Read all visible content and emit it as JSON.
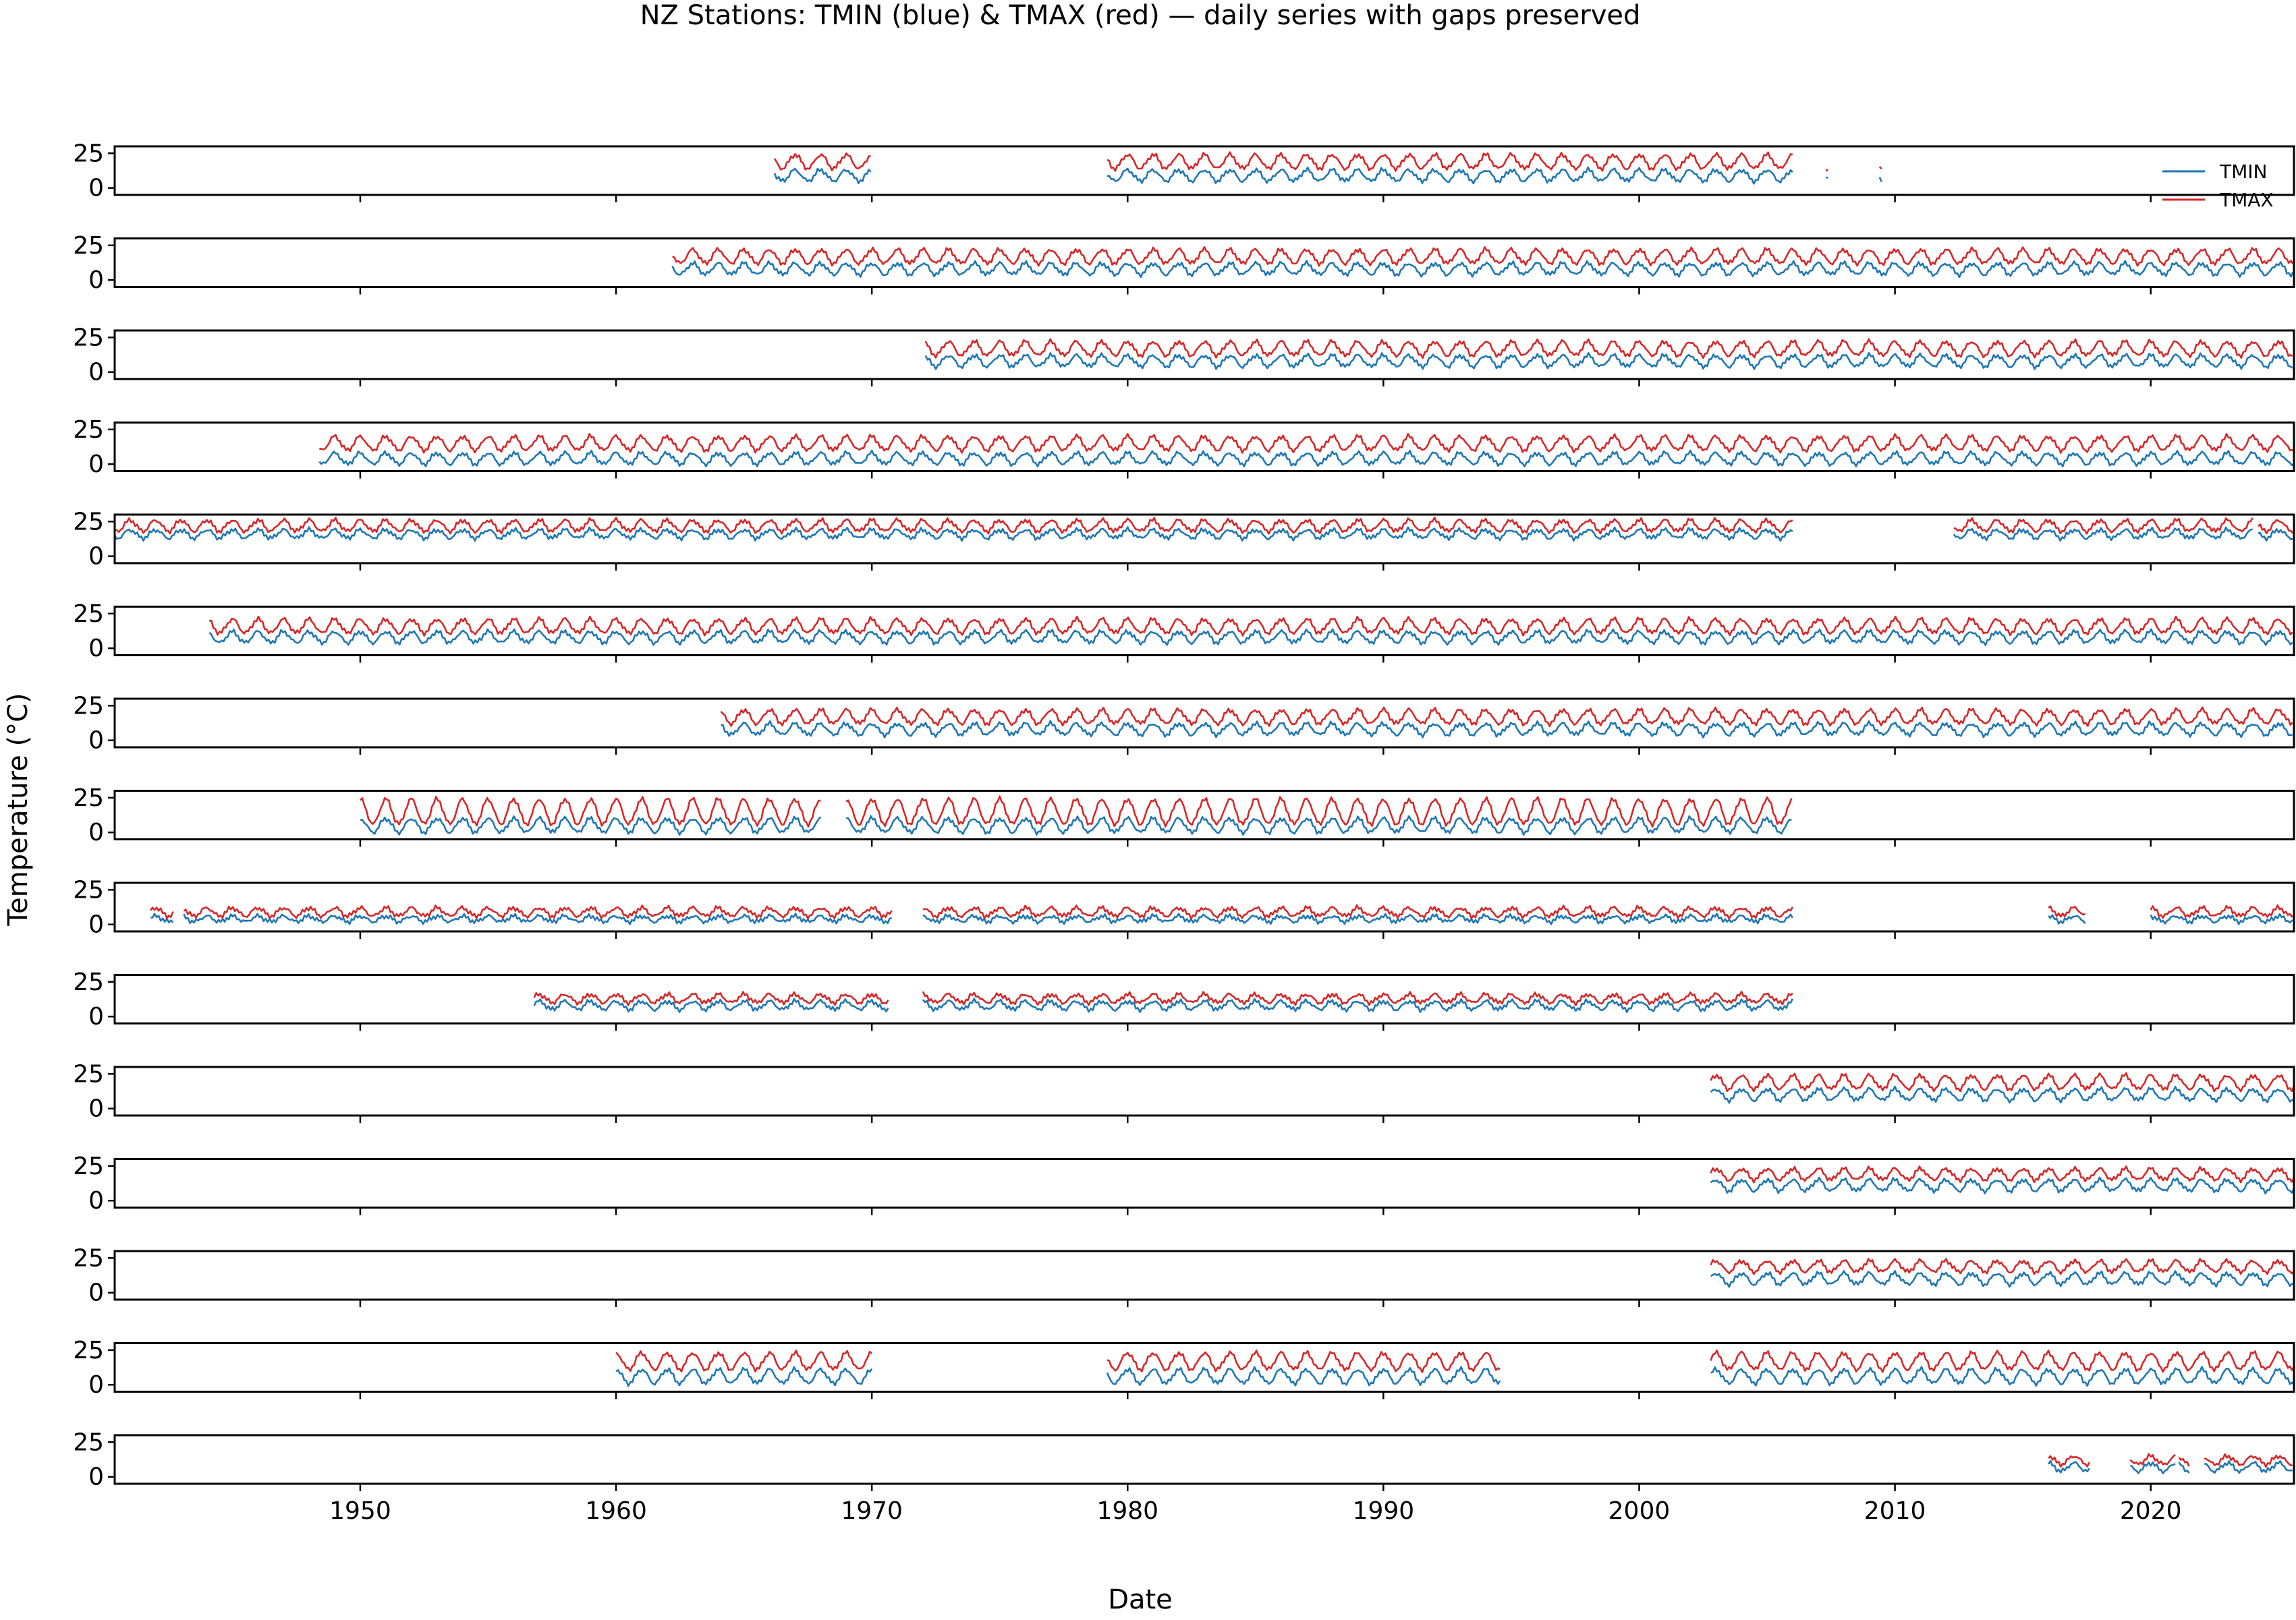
{
  "chart_data": {
    "type": "line",
    "title": "NZ Stations: TMIN (blue) & TMAX (red) — daily series with gaps preserved",
    "xlabel": "Date",
    "ylabel": "Temperature (°C)",
    "xlim": [
      1940.4,
      2025.6
    ],
    "ylim": [
      -5,
      30
    ],
    "x_ticks": [
      "1950",
      "1960",
      "1970",
      "1980",
      "1990",
      "2000",
      "2010",
      "2020"
    ],
    "y_ticks": [
      "0",
      "25"
    ],
    "legend": {
      "placement": "top-right",
      "entries": [
        "TMIN",
        "TMAX"
      ]
    },
    "colors": {
      "TMIN": "#1f77b4",
      "TMAX": "#d62728"
    },
    "grid": false,
    "panels": [
      {
        "segments": [
          {
            "start": 1966.2,
            "end": 1970.0,
            "tmin_mean": 9,
            "tmin_amp": 4,
            "tmax_mean": 19,
            "tmax_amp": 5
          },
          {
            "start": 1979.2,
            "end": 2006.0,
            "tmin_mean": 9,
            "tmin_amp": 4,
            "tmax_mean": 19,
            "tmax_amp": 5
          },
          {
            "start": 2007.3,
            "end": 2007.4,
            "tmin_mean": 9,
            "tmin_amp": 4,
            "tmax_mean": 15,
            "tmax_amp": 3
          },
          {
            "start": 2009.4,
            "end": 2009.55,
            "tmin_mean": 9,
            "tmin_amp": 4,
            "tmax_mean": 18,
            "tmax_amp": 3
          }
        ]
      },
      {
        "segments": [
          {
            "start": 1962.2,
            "end": 2025.6,
            "tmin_mean": 8,
            "tmin_amp": 4,
            "tmax_mean": 17,
            "tmax_amp": 5
          }
        ]
      },
      {
        "segments": [
          {
            "start": 1972.1,
            "end": 2025.6,
            "tmin_mean": 8,
            "tmin_amp": 4,
            "tmax_mean": 17,
            "tmax_amp": 5
          }
        ]
      },
      {
        "segments": [
          {
            "start": 1948.4,
            "end": 2025.6,
            "tmin_mean": 4,
            "tmin_amp": 4,
            "tmax_mean": 15,
            "tmax_amp": 5
          }
        ]
      },
      {
        "segments": [
          {
            "start": 1940.4,
            "end": 2006.0,
            "tmin_mean": 16,
            "tmin_amp": 3,
            "tmax_mean": 22,
            "tmax_amp": 4
          },
          {
            "start": 2012.3,
            "end": 2024.0,
            "tmin_mean": 16,
            "tmin_amp": 3,
            "tmax_mean": 22,
            "tmax_amp": 4
          },
          {
            "start": 2024.2,
            "end": 2025.6,
            "tmin_mean": 16,
            "tmin_amp": 3,
            "tmax_mean": 22,
            "tmax_amp": 4
          }
        ]
      },
      {
        "segments": [
          {
            "start": 1944.1,
            "end": 2025.6,
            "tmin_mean": 8,
            "tmin_amp": 4,
            "tmax_mean": 16,
            "tmax_amp": 5
          }
        ]
      },
      {
        "segments": [
          {
            "start": 1964.1,
            "end": 2025.6,
            "tmin_mean": 8,
            "tmin_amp": 4,
            "tmax_mean": 17,
            "tmax_amp": 5
          }
        ]
      },
      {
        "segments": [
          {
            "start": 1950.0,
            "end": 1968.0,
            "tmin_mean": 5,
            "tmin_amp": 5,
            "tmax_mean": 15,
            "tmax_amp": 9
          },
          {
            "start": 1969.0,
            "end": 2006.0,
            "tmin_mean": 5,
            "tmin_amp": 5,
            "tmax_mean": 15,
            "tmax_amp": 9
          }
        ]
      },
      {
        "segments": [
          {
            "start": 1941.8,
            "end": 1942.7,
            "tmin_mean": 4,
            "tmin_amp": 2,
            "tmax_mean": 9,
            "tmax_amp": 3
          },
          {
            "start": 1943.1,
            "end": 1970.8,
            "tmin_mean": 4,
            "tmin_amp": 2,
            "tmax_mean": 9,
            "tmax_amp": 3
          },
          {
            "start": 1972.0,
            "end": 2006.0,
            "tmin_mean": 4,
            "tmin_amp": 2,
            "tmax_mean": 9,
            "tmax_amp": 3
          },
          {
            "start": 2016.0,
            "end": 2017.5,
            "tmin_mean": 4,
            "tmin_amp": 2,
            "tmax_mean": 9,
            "tmax_amp": 3
          },
          {
            "start": 2020.0,
            "end": 2025.6,
            "tmin_mean": 4,
            "tmin_amp": 2,
            "tmax_mean": 9,
            "tmax_amp": 3
          }
        ]
      },
      {
        "segments": [
          {
            "start": 1956.8,
            "end": 1970.7,
            "tmin_mean": 8,
            "tmin_amp": 3,
            "tmax_mean": 13,
            "tmax_amp": 3
          },
          {
            "start": 1972.0,
            "end": 2006.0,
            "tmin_mean": 8,
            "tmin_amp": 3,
            "tmax_mean": 13,
            "tmax_amp": 3
          }
        ]
      },
      {
        "segments": [
          {
            "start": 2002.8,
            "end": 2025.6,
            "tmin_mean": 10,
            "tmin_amp": 4,
            "tmax_mean": 19,
            "tmax_amp": 5
          }
        ]
      },
      {
        "segments": [
          {
            "start": 2002.8,
            "end": 2025.6,
            "tmin_mean": 11,
            "tmin_amp": 4,
            "tmax_mean": 19,
            "tmax_amp": 4
          }
        ]
      },
      {
        "segments": [
          {
            "start": 2002.8,
            "end": 2025.6,
            "tmin_mean": 10,
            "tmin_amp": 4,
            "tmax_mean": 19,
            "tmax_amp": 4
          }
        ]
      },
      {
        "segments": [
          {
            "start": 1960.0,
            "end": 1970.0,
            "tmin_mean": 6,
            "tmin_amp": 5,
            "tmax_mean": 17,
            "tmax_amp": 6
          },
          {
            "start": 1979.2,
            "end": 1994.6,
            "tmin_mean": 6,
            "tmin_amp": 5,
            "tmax_mean": 17,
            "tmax_amp": 6
          },
          {
            "start": 2002.8,
            "end": 2025.6,
            "tmin_mean": 6,
            "tmin_amp": 5,
            "tmax_mean": 17,
            "tmax_amp": 6
          }
        ]
      },
      {
        "segments": [
          {
            "start": 2016.0,
            "end": 2017.6,
            "tmin_mean": 7,
            "tmin_amp": 3,
            "tmax_mean": 12,
            "tmax_amp": 3
          },
          {
            "start": 2019.2,
            "end": 2021.0,
            "tmin_mean": 7,
            "tmin_amp": 3,
            "tmax_mean": 12,
            "tmax_amp": 3
          },
          {
            "start": 2021.1,
            "end": 2021.5,
            "tmin_mean": 7,
            "tmin_amp": 3,
            "tmax_mean": 12,
            "tmax_amp": 3
          },
          {
            "start": 2022.1,
            "end": 2025.6,
            "tmin_mean": 7,
            "tmin_amp": 3,
            "tmax_mean": 12,
            "tmax_amp": 3
          }
        ]
      }
    ]
  }
}
